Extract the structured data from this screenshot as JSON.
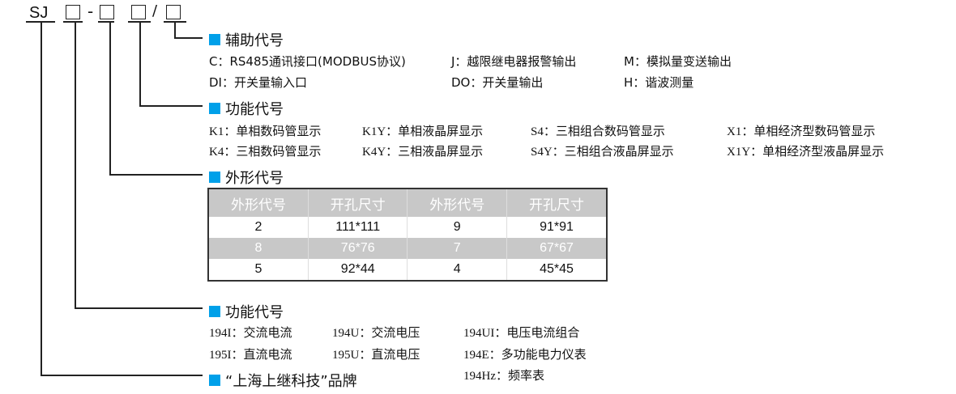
{
  "model": {
    "prefix": "SJ",
    "dash": "-",
    "slash": "/"
  },
  "aux": {
    "title": "辅助代号",
    "items": [
      "C：RS485通讯接口(MODBUS协议)",
      "J：越限继电器报警输出",
      "M：模拟量变送输出",
      "DI：开关量输入口",
      "DO：开关量输出",
      "H：谐波测量"
    ]
  },
  "display": {
    "title": "功能代号",
    "items": [
      "K1：单相数码管显示",
      "K1Y：单相液晶屏显示",
      "S4：三相组合数码管显示",
      "X1：单相经济型数码管显示",
      "K4：三相数码管显示",
      "K4Y：三相液晶屏显示",
      "S4Y：三相组合液晶屏显示",
      "X1Y：单相经济型液晶屏显示"
    ]
  },
  "shape": {
    "title": "外形代号",
    "headers": [
      "外形代号",
      "开孔尺寸",
      "外形代号",
      "开孔尺寸"
    ],
    "rows": [
      [
        "2",
        "111*111",
        "9",
        "91*91"
      ],
      [
        "8",
        "76*76",
        "7",
        "67*67"
      ],
      [
        "5",
        "92*44",
        "4",
        "45*45"
      ]
    ]
  },
  "function": {
    "title": "功能代号",
    "items": [
      "194I：交流电流",
      "194U：交流电压",
      "194UI：电压电流组合",
      "195I：直流电流",
      "195U：直流电压",
      "194E：多功能电力仪表",
      "194Hz：频率表"
    ]
  },
  "brand": {
    "title": "“上海上继科技”品牌"
  },
  "colors": {
    "accent": "#00a0e9",
    "row_gray": "#c8c8c8"
  }
}
